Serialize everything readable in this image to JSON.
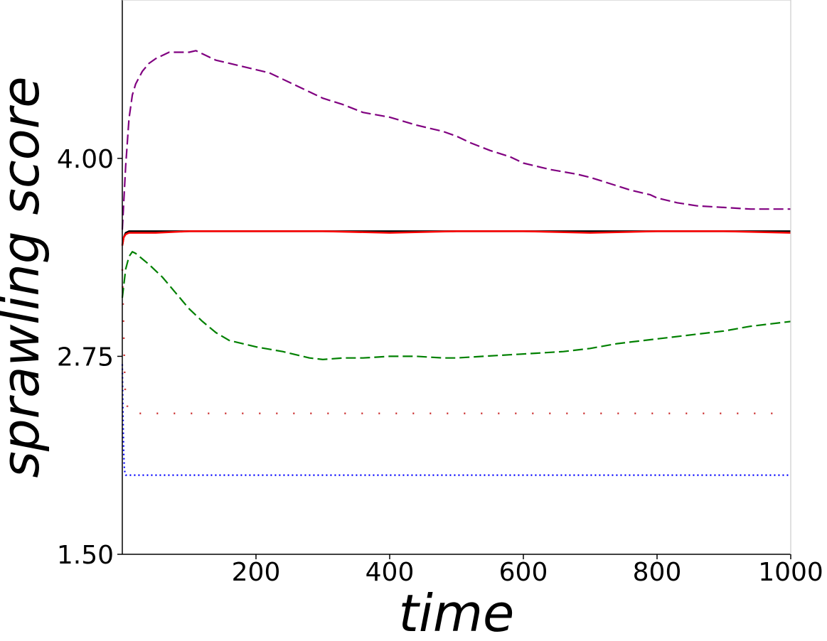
{
  "chart_data": {
    "type": "line",
    "title": "",
    "xlabel": "time",
    "ylabel": "sprawling score",
    "xlim": [
      0,
      1000
    ],
    "ylim": [
      1.5,
      5.0
    ],
    "xticks": [
      200,
      400,
      600,
      800,
      1000
    ],
    "xtick_labels": [
      "200",
      "400",
      "600",
      "800",
      "1000"
    ],
    "yticks": [
      1.5,
      2.75,
      4.0
    ],
    "ytick_labels": [
      "1.50",
      "2.75",
      "4.00"
    ],
    "grid": false,
    "legend": "none",
    "series": [
      {
        "color": "#800080",
        "style": "dashed",
        "x": [
          0,
          5,
          10,
          15,
          20,
          30,
          40,
          50,
          60,
          70,
          80,
          100,
          110,
          120,
          140,
          160,
          180,
          200,
          220,
          250,
          280,
          300,
          330,
          360,
          400,
          440,
          480,
          500,
          520,
          550,
          580,
          600,
          640,
          680,
          700,
          730,
          760,
          790,
          800,
          830,
          860,
          900,
          940,
          980,
          1000
        ],
        "y": [
          3.55,
          3.95,
          4.25,
          4.4,
          4.47,
          4.55,
          4.6,
          4.63,
          4.65,
          4.67,
          4.67,
          4.67,
          4.68,
          4.66,
          4.62,
          4.6,
          4.58,
          4.56,
          4.54,
          4.48,
          4.42,
          4.38,
          4.34,
          4.29,
          4.26,
          4.21,
          4.17,
          4.14,
          4.1,
          4.05,
          4.01,
          3.97,
          3.93,
          3.9,
          3.88,
          3.84,
          3.8,
          3.77,
          3.75,
          3.72,
          3.7,
          3.69,
          3.68,
          3.68,
          3.68
        ]
      },
      {
        "color": "#000000",
        "style": "solid",
        "x": [
          0,
          2,
          5,
          10,
          50,
          100,
          200,
          300,
          400,
          500,
          600,
          700,
          800,
          900,
          1000
        ],
        "y": [
          3.45,
          3.5,
          3.53,
          3.54,
          3.54,
          3.54,
          3.54,
          3.54,
          3.54,
          3.54,
          3.54,
          3.54,
          3.54,
          3.54,
          3.54
        ]
      },
      {
        "color": "#ff0000",
        "style": "solid",
        "x": [
          0,
          2,
          5,
          10,
          50,
          100,
          200,
          300,
          400,
          500,
          600,
          700,
          800,
          900,
          1000
        ],
        "y": [
          3.45,
          3.5,
          3.52,
          3.53,
          3.53,
          3.54,
          3.54,
          3.54,
          3.53,
          3.54,
          3.54,
          3.53,
          3.54,
          3.54,
          3.53
        ]
      },
      {
        "color": "#008000",
        "style": "dashed",
        "x": [
          0,
          5,
          10,
          15,
          20,
          40,
          60,
          80,
          100,
          120,
          140,
          160,
          180,
          200,
          240,
          280,
          300,
          330,
          360,
          400,
          440,
          480,
          500,
          540,
          580,
          620,
          660,
          700,
          740,
          780,
          820,
          860,
          900,
          940,
          980,
          1000
        ],
        "y": [
          3.12,
          3.3,
          3.38,
          3.41,
          3.4,
          3.33,
          3.25,
          3.15,
          3.05,
          2.97,
          2.9,
          2.85,
          2.83,
          2.81,
          2.78,
          2.74,
          2.73,
          2.74,
          2.74,
          2.75,
          2.75,
          2.74,
          2.74,
          2.75,
          2.76,
          2.77,
          2.78,
          2.8,
          2.83,
          2.85,
          2.87,
          2.89,
          2.91,
          2.94,
          2.96,
          2.97
        ]
      },
      {
        "color": "#cc3333",
        "style": "dotted",
        "x": [
          0,
          2,
          4,
          8,
          15,
          50,
          100,
          200,
          300,
          400,
          500,
          600,
          700,
          800,
          900,
          980
        ],
        "y": [
          3.3,
          2.9,
          2.55,
          2.42,
          2.39,
          2.39,
          2.39,
          2.39,
          2.39,
          2.39,
          2.39,
          2.39,
          2.39,
          2.39,
          2.39,
          2.39
        ]
      },
      {
        "color": "#0000ff",
        "style": "dotted",
        "x": [
          0,
          1,
          2,
          3,
          4,
          5,
          10,
          50,
          100,
          200,
          300,
          400,
          500,
          600,
          700,
          800,
          900,
          1000
        ],
        "y": [
          2.7,
          2.4,
          2.15,
          2.05,
          2.01,
          2.0,
          2.0,
          2.0,
          2.0,
          2.0,
          2.0,
          2.0,
          2.0,
          2.0,
          2.0,
          2.0,
          2.0,
          2.0
        ]
      }
    ]
  }
}
